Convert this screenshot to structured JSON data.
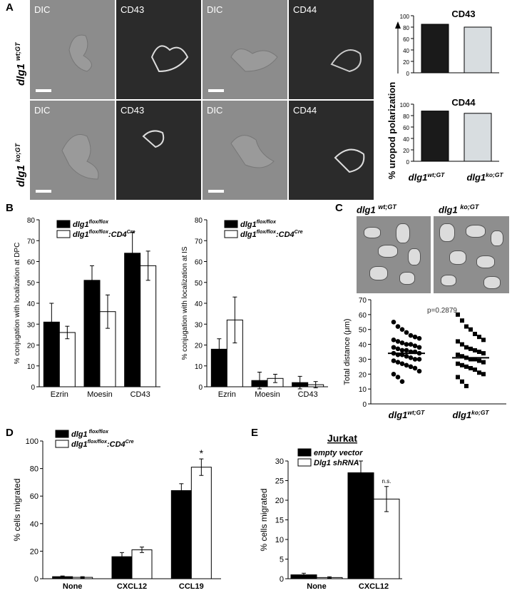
{
  "panels": {
    "a": "A",
    "b": "B",
    "c": "C",
    "d": "D",
    "e": "E"
  },
  "panelA": {
    "images": [
      {
        "label": "DIC"
      },
      {
        "label": "CD43"
      },
      {
        "label": "DIC"
      },
      {
        "label": "CD44"
      },
      {
        "label": "DIC"
      },
      {
        "label": "CD43"
      },
      {
        "label": "DIC"
      },
      {
        "label": "CD44"
      }
    ],
    "row_wt": {
      "gene": "dlg1",
      "sup": "wt;GT"
    },
    "row_ko": {
      "gene": "dlg1",
      "sup": "ko;GT"
    }
  },
  "chart_data": [
    {
      "id": "A-CD43",
      "type": "bar",
      "title": "CD43",
      "categories": [
        "dlg1 wt;GT",
        "dlg1 ko;GT"
      ],
      "values": [
        85,
        80
      ],
      "ylim": [
        0,
        100
      ],
      "yticks": [
        "0",
        "20",
        "40",
        "60",
        "80",
        "100"
      ],
      "colors": [
        "#1a1a1a",
        "#d8dde0"
      ]
    },
    {
      "id": "A-CD44",
      "type": "bar",
      "title": "CD44",
      "categories": [
        "dlg1 wt;GT",
        "dlg1 ko;GT"
      ],
      "values": [
        88,
        84
      ],
      "ylim": [
        0,
        100
      ],
      "yticks": [
        "0",
        "20",
        "40",
        "60",
        "80",
        "100"
      ],
      "colors": [
        "#1a1a1a",
        "#d8dde0"
      ],
      "ylabel": "% uropod polarization",
      "xlabels": [
        {
          "gene": "dlg1",
          "sup": "wt;GT"
        },
        {
          "gene": "dlg1",
          "sup": "ko;GT"
        }
      ]
    },
    {
      "id": "B-DPC",
      "type": "bar",
      "ylabel": "% conjugation with localization at  DPC",
      "categories": [
        "Ezrin",
        "Moesin",
        "CD43"
      ],
      "series": [
        {
          "name": "dlg1 flox/flox",
          "values": [
            31,
            51,
            64
          ],
          "err": [
            9,
            7,
            10
          ],
          "color": "#000"
        },
        {
          "name": "dlg1 flox/flox:CD4 Cre",
          "values": [
            26,
            36,
            58
          ],
          "err": [
            3,
            8,
            7
          ],
          "color": "#fff"
        }
      ],
      "ylim": [
        0,
        80
      ],
      "yticks": [
        "0",
        "10",
        "20",
        "30",
        "40",
        "50",
        "60",
        "70",
        "80"
      ],
      "legend": [
        {
          "gene": "dlg1",
          "sup": "flox/flox",
          "extra": "",
          "extraSup": ""
        },
        {
          "gene": "dlg1",
          "sup": "flox/flox",
          "extra": ":CD4",
          "extraSup": "Cre"
        }
      ]
    },
    {
      "id": "B-IS",
      "type": "bar",
      "ylabel": "% conjugation with localization at IS",
      "categories": [
        "Ezrin",
        "Moesin",
        "CD43"
      ],
      "series": [
        {
          "name": "dlg1 flox/flox",
          "values": [
            18,
            3,
            2
          ],
          "err": [
            5,
            4,
            3
          ],
          "color": "#000"
        },
        {
          "name": "dlg1 flox/flox:CD4 Cre",
          "values": [
            32,
            4,
            1
          ],
          "err": [
            11,
            2,
            1.5
          ],
          "color": "#fff"
        }
      ],
      "ylim": [
        0,
        80
      ],
      "yticks": [
        "0",
        "10",
        "20",
        "30",
        "40",
        "50",
        "60",
        "70",
        "80"
      ],
      "legend": [
        {
          "gene": "dlg1",
          "sup": "flox/flox",
          "extra": "",
          "extraSup": ""
        },
        {
          "gene": "dlg1",
          "sup": "flox/flox",
          "extra": ":CD4",
          "extraSup": "Cre"
        }
      ]
    },
    {
      "id": "C-scatter",
      "type": "scatter",
      "ylabel": "Total distance (μm)",
      "annotation": "p=0.2879",
      "categories": [
        "dlg1 wt;GT",
        "dlg1 ko;GT"
      ],
      "means": [
        34,
        31
      ],
      "points_wt": [
        55,
        52,
        50,
        48,
        46,
        45,
        44,
        43,
        42,
        41,
        40,
        40,
        39,
        38,
        38,
        37,
        36,
        36,
        35,
        35,
        34,
        34,
        33,
        33,
        32,
        31,
        30,
        30,
        29,
        28,
        27,
        26,
        25,
        24,
        22,
        20,
        18,
        15
      ],
      "points_ko": [
        60,
        56,
        52,
        50,
        47,
        45,
        43,
        42,
        40,
        38,
        37,
        36,
        35,
        34,
        33,
        32,
        31,
        30,
        30,
        29,
        28,
        27,
        26,
        25,
        24,
        23,
        21,
        20,
        18,
        15,
        12
      ],
      "ylim": [
        0,
        70
      ],
      "yticks": [
        "0",
        "10",
        "20",
        "30",
        "40",
        "50",
        "60",
        "70"
      ],
      "xlabels": [
        {
          "gene": "dlg1",
          "sup": "wt;GT"
        },
        {
          "gene": "dlg1",
          "sup": "ko;GT"
        }
      ]
    },
    {
      "id": "D",
      "type": "bar",
      "ylabel": "% cells migrated",
      "categories": [
        "None",
        "CXCL12",
        "CCL19"
      ],
      "series": [
        {
          "name": "dlg1 flox/flox",
          "values": [
            1.5,
            16,
            64
          ],
          "err": [
            0.5,
            3,
            5
          ],
          "color": "#000"
        },
        {
          "name": "dlg1 flox/flox:CD4 Cre",
          "values": [
            1,
            21,
            81
          ],
          "err": [
            0.5,
            2,
            6
          ],
          "color": "#fff"
        }
      ],
      "ylim": [
        0,
        100
      ],
      "yticks": [
        "0",
        "20",
        "40",
        "60",
        "80",
        "100"
      ],
      "annotation": "*",
      "legend": [
        {
          "gene": "dlg1",
          "sup": " flox/flox",
          "extra": "",
          "extraSup": ""
        },
        {
          "gene": "dlg1",
          "sup": "flox/flox",
          "extra": ":CD4",
          "extraSup": "Cre"
        }
      ]
    },
    {
      "id": "E",
      "type": "bar",
      "title": "Jurkat",
      "ylabel": "% cells migrated",
      "categories": [
        "None",
        "CXCL12"
      ],
      "series": [
        {
          "name": "empty vector",
          "values": [
            1,
            27
          ],
          "err": [
            0.4,
            3
          ],
          "color": "#000"
        },
        {
          "name": "Dlg1 shRNA",
          "values": [
            0.3,
            20.3
          ],
          "err": [
            0.2,
            3.2
          ],
          "color": "#fff"
        }
      ],
      "ylim": [
        0,
        30
      ],
      "yticks": [
        "0",
        "5",
        "10",
        "15",
        "20",
        "25",
        "30"
      ],
      "annotation": "n.s.",
      "legend": [
        {
          "gene": "empty vector",
          "sup": "",
          "extra": "",
          "extraSup": ""
        },
        {
          "gene": "Dlg1 shRNA",
          "sup": "",
          "extra": "",
          "extraSup": ""
        }
      ]
    }
  ]
}
